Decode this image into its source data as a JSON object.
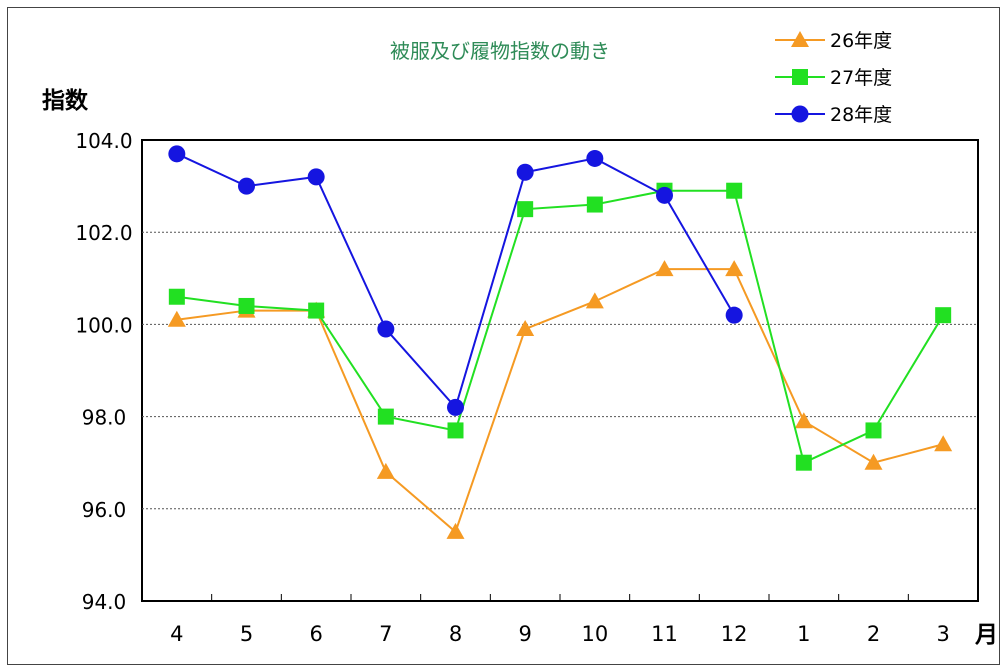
{
  "chart_data": {
    "type": "line",
    "title": "被服及び履物指数の動き",
    "ylabel": "指数",
    "xlabel": "月",
    "categories": [
      "4",
      "5",
      "6",
      "7",
      "8",
      "9",
      "10",
      "11",
      "12",
      "1",
      "2",
      "3"
    ],
    "ylim": [
      94.0,
      104.0
    ],
    "yticks": [
      "94.0",
      "96.0",
      "98.0",
      "100.0",
      "102.0",
      "104.0"
    ],
    "grid": true,
    "legend": "top-right",
    "series": [
      {
        "name": "26年度",
        "marker": "triangle",
        "color": "#f59a23",
        "values": [
          100.1,
          100.3,
          100.3,
          96.8,
          95.5,
          99.9,
          100.5,
          101.2,
          101.2,
          97.9,
          97.0,
          97.4
        ]
      },
      {
        "name": "27年度",
        "marker": "square",
        "color": "#22e022",
        "values": [
          100.6,
          100.4,
          100.3,
          98.0,
          97.7,
          102.5,
          102.6,
          102.9,
          102.9,
          97.0,
          97.7,
          100.2
        ]
      },
      {
        "name": "28年度",
        "marker": "circle",
        "color": "#1515e0",
        "values": [
          103.7,
          103.0,
          103.2,
          99.9,
          98.2,
          103.3,
          103.6,
          102.8,
          100.2,
          null,
          null,
          null
        ]
      }
    ]
  },
  "colors": {
    "title": "#2e8b57",
    "axis": "#000000",
    "grid": "#555555"
  }
}
